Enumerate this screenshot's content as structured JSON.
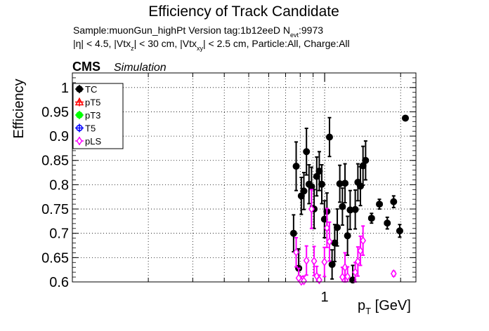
{
  "chart_data": {
    "type": "scatter",
    "title": "Efficiency of Track Candidate",
    "subtitle_lines": {
      "line1_main": "Sample:muonGun_highPt   Version tag:1b12eeD  N",
      "line1_sub": "evt",
      "line1_value": ":9973",
      "line2_a": "|η| < 4.5, |Vtx",
      "line2_a_sub": "z",
      "line2_b": "| < 30 cm, |Vtx",
      "line2_b_sub": "xy",
      "line2_c": "| < 2.5 cm, Particle:All, Charge:All"
    },
    "experiment": "CMS",
    "experiment_tag": "Simulation",
    "xlabel_main": "p",
    "xlabel_sub": "T",
    "xlabel_unit": " [GeV]",
    "ylabel": "Efficiency",
    "x_scale": "log",
    "xlim": [
      0.1,
      2.3
    ],
    "ylim": [
      0.6,
      1.03
    ],
    "x_tick_labels": [
      {
        "value": 1,
        "label": "1"
      }
    ],
    "y_ticks": [
      0.6,
      0.65,
      0.7,
      0.75,
      0.8,
      0.85,
      0.9,
      0.95,
      1
    ],
    "y_tick_labels": [
      "0.6",
      "0.65",
      "0.7",
      "0.75",
      "0.8",
      "0.85",
      "0.9",
      "0.95",
      "1"
    ],
    "grid": true,
    "legend_position": "top-left",
    "legend": [
      {
        "name": "TC",
        "color": "#000000",
        "marker": "filled-circle"
      },
      {
        "name": "pT5",
        "color": "#ff0000",
        "marker": "open-triangle"
      },
      {
        "name": "pT3",
        "color": "#00ff00",
        "marker": "filled-circle"
      },
      {
        "name": "T5",
        "color": "#0000ff",
        "marker": "open-circle"
      },
      {
        "name": "pLS",
        "color": "#ff00ff",
        "marker": "open-diamond"
      }
    ],
    "series": [
      {
        "name": "TC",
        "color": "#000000",
        "marker": "filled-circle",
        "points": [
          {
            "x": 0.753,
            "y": 0.7,
            "yerr": 0.038
          },
          {
            "x": 0.771,
            "y": 0.838,
            "yerr": 0.05
          },
          {
            "x": 0.789,
            "y": 0.628,
            "yerr": 0.04
          },
          {
            "x": 0.808,
            "y": 0.777,
            "yerr": 0.038
          },
          {
            "x": 0.827,
            "y": 0.787,
            "yerr": 0.038
          },
          {
            "x": 0.847,
            "y": 0.868,
            "yerr": 0.048
          },
          {
            "x": 0.867,
            "y": 0.801,
            "yerr": 0.04
          },
          {
            "x": 0.887,
            "y": 0.796,
            "yerr": 0.04
          },
          {
            "x": 0.908,
            "y": 0.75,
            "yerr": 0.04
          },
          {
            "x": 0.93,
            "y": 0.817,
            "yerr": 0.04
          },
          {
            "x": 0.952,
            "y": 0.828,
            "yerr": 0.04
          },
          {
            "x": 0.974,
            "y": 0.801,
            "yerr": 0.04
          },
          {
            "x": 0.998,
            "y": 0.729,
            "yerr": 0.038
          },
          {
            "x": 1.021,
            "y": 0.745,
            "yerr": 0.038
          },
          {
            "x": 1.045,
            "y": 0.898,
            "yerr": 0.04
          },
          {
            "x": 1.07,
            "y": 0.636,
            "yerr": 0.03
          },
          {
            "x": 1.096,
            "y": 0.68,
            "yerr": 0.038
          },
          {
            "x": 1.122,
            "y": 0.712,
            "yerr": 0.038
          },
          {
            "x": 1.148,
            "y": 0.802,
            "yerr": 0.038
          },
          {
            "x": 1.176,
            "y": 0.755,
            "yerr": 0.038
          },
          {
            "x": 1.204,
            "y": 0.803,
            "yerr": 0.04
          },
          {
            "x": 1.232,
            "y": 0.695,
            "yerr": 0.04
          },
          {
            "x": 1.262,
            "y": 0.748,
            "yerr": 0.04
          },
          {
            "x": 1.292,
            "y": 0.604,
            "yerr": 0.03
          },
          {
            "x": 1.322,
            "y": 0.749,
            "yerr": 0.04
          },
          {
            "x": 1.354,
            "y": 0.805,
            "yerr": 0.038
          },
          {
            "x": 1.386,
            "y": 0.797,
            "yerr": 0.04
          },
          {
            "x": 1.419,
            "y": 0.839,
            "yerr": 0.04
          },
          {
            "x": 1.453,
            "y": 0.85,
            "yerr": 0.04
          },
          {
            "x": 1.534,
            "y": 0.731,
            "yerr": 0.01,
            "xerr": [
              1.499,
              1.57
            ]
          },
          {
            "x": 1.648,
            "y": 0.76,
            "yerr": 0.01,
            "xerr": [
              1.611,
              1.688
            ]
          },
          {
            "x": 1.771,
            "y": 0.721,
            "yerr": 0.012,
            "xerr": [
              1.731,
              1.81
            ]
          },
          {
            "x": 1.877,
            "y": 0.765,
            "yerr": 0.012,
            "xerr": [
              1.856,
              1.905
            ]
          },
          {
            "x": 1.984,
            "y": 0.705,
            "yerr": 0.013,
            "xerr": [
              1.94,
              2.029
            ]
          },
          {
            "x": 2.089,
            "y": 0.937,
            "yerr": 0.004,
            "xerr": [
              2.063,
              2.116
            ]
          }
        ]
      },
      {
        "name": "pLS",
        "color": "#ff00ff",
        "marker": "open-diamond",
        "points": [
          {
            "x": 0.771,
            "y": 0.661,
            "yerr": 0.03
          },
          {
            "x": 0.789,
            "y": 0.608,
            "yerr": 0.02
          },
          {
            "x": 0.808,
            "y": 0.601,
            "yerr": 0.01
          },
          {
            "x": 0.827,
            "y": 0.602,
            "yerr": 0.01
          },
          {
            "x": 0.847,
            "y": 0.644,
            "yerr": 0.03
          },
          {
            "x": 0.887,
            "y": 0.75,
            "yerr": 0.04
          },
          {
            "x": 0.908,
            "y": 0.643,
            "yerr": 0.03
          },
          {
            "x": 0.93,
            "y": 0.612,
            "yerr": 0.02
          },
          {
            "x": 0.952,
            "y": 0.604,
            "yerr": 0.01
          },
          {
            "x": 0.998,
            "y": 0.641,
            "yerr": 0.03
          },
          {
            "x": 1.021,
            "y": 0.711,
            "yerr": 0.04
          },
          {
            "x": 1.045,
            "y": 0.683,
            "yerr": 0.04
          },
          {
            "x": 1.176,
            "y": 0.61,
            "yerr": 0.02
          },
          {
            "x": 1.204,
            "y": 0.63,
            "yerr": 0.03
          },
          {
            "x": 1.232,
            "y": 0.611,
            "yerr": 0.02
          },
          {
            "x": 1.322,
            "y": 0.62,
            "yerr": 0.02
          },
          {
            "x": 1.354,
            "y": 0.642,
            "yerr": 0.03
          },
          {
            "x": 1.386,
            "y": 0.664,
            "yerr": 0.03
          },
          {
            "x": 1.419,
            "y": 0.685,
            "yerr": 0.03
          },
          {
            "x": 1.877,
            "y": 0.617,
            "yerr": 0.005,
            "xerr": [
              1.856,
              1.905
            ]
          }
        ]
      }
    ]
  }
}
